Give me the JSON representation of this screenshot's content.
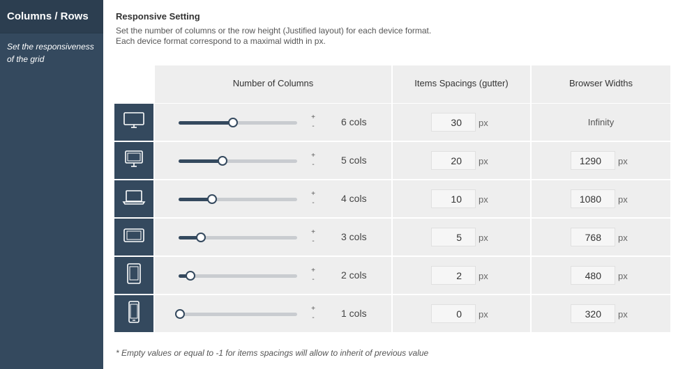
{
  "sidebar": {
    "title": "Columns / Rows",
    "description": "Set the responsiveness of the grid"
  },
  "main": {
    "heading": "Responsive Setting",
    "description_line1": "Set the number of columns or the row height (Justified layout) for each device format.",
    "description_line2": "Each device format correspond to a maximal width in px.",
    "footnote": "* Empty values or equal to -1 for items spacings will allow to inherit of previous value"
  },
  "table": {
    "headers": {
      "columns": "Number of Columns",
      "spacing": "Items Spacings (gutter)",
      "widths": "Browser Widths"
    },
    "stepper": {
      "plus": "+",
      "minus": "-"
    },
    "unit": "px",
    "rows": [
      {
        "device_icon": "desktop-wide-icon",
        "columns": 6,
        "slider_fraction": 0.46,
        "columns_label": "6 cols",
        "spacing": "30",
        "width": "Infinity",
        "width_editable": false
      },
      {
        "device_icon": "desktop-icon",
        "columns": 5,
        "slider_fraction": 0.37,
        "columns_label": "5 cols",
        "spacing": "20",
        "width": "1290",
        "width_editable": true
      },
      {
        "device_icon": "laptop-icon",
        "columns": 4,
        "slider_fraction": 0.28,
        "columns_label": "4 cols",
        "spacing": "10",
        "width": "1080",
        "width_editable": true
      },
      {
        "device_icon": "tablet-landscape-icon",
        "columns": 3,
        "slider_fraction": 0.19,
        "columns_label": "3 cols",
        "spacing": "5",
        "width": "768",
        "width_editable": true
      },
      {
        "device_icon": "tablet-portrait-icon",
        "columns": 2,
        "slider_fraction": 0.1,
        "columns_label": "2 cols",
        "spacing": "2",
        "width": "480",
        "width_editable": true
      },
      {
        "device_icon": "mobile-icon",
        "columns": 1,
        "slider_fraction": 0.01,
        "columns_label": "1 cols",
        "spacing": "0",
        "width": "320",
        "width_editable": true
      }
    ]
  },
  "colors": {
    "sidebar_bg": "#34495e",
    "accent": "#34495e",
    "cell_bg": "#eeeeee",
    "track": "#c9ccd0"
  }
}
